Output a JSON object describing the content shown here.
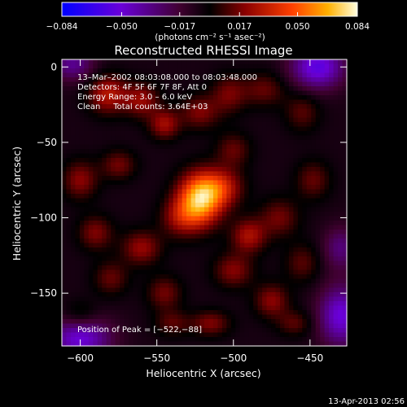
{
  "chart_data": {
    "type": "heatmap",
    "title": "Reconstructed RHESSI Image",
    "xlabel": "Heliocentric X (arcsec)",
    "ylabel": "Heliocentric Y (arcsec)",
    "xlim": [
      -612,
      -426
    ],
    "ylim": [
      -185,
      5
    ],
    "x_ticks": [
      -600,
      -550,
      -500,
      -450
    ],
    "x_tick_labels": [
      "−600",
      "−550",
      "−500",
      "−450"
    ],
    "y_ticks": [
      0,
      -50,
      -100,
      -150
    ],
    "y_tick_labels": [
      "0",
      "−50",
      "−100",
      "−150"
    ],
    "colorbar": {
      "min": -0.084,
      "max": 0.084,
      "ticks": [
        -0.084,
        -0.05,
        -0.017,
        0.017,
        0.05,
        0.084
      ],
      "tick_labels": [
        "−0.084",
        "−0.050",
        "−0.017",
        "0.017",
        "0.050",
        "0.084"
      ],
      "unit_label": "(photons cm⁻² s⁻¹ asec⁻²)"
    },
    "annotations": [
      "13–Mar–2002 08:03:08.000 to 08:03:48.000",
      "Detectors: 4F 5F 6F 7F 8F, Att 0",
      "Energy Range: 3.0 – 6.0 keV",
      "Clean     Total counts: 3.64E+03"
    ],
    "peak_label": "Position of Peak = [−522,−88]",
    "peak": {
      "x": -522,
      "y": -88,
      "value": 0.084
    },
    "grid": false,
    "blobs": [
      {
        "x": -522,
        "y": -88,
        "sx": 10,
        "sy": 12,
        "a": 0.075
      },
      {
        "x": -508,
        "y": -80,
        "sx": 10,
        "sy": 9,
        "a": 0.035
      },
      {
        "x": -535,
        "y": -100,
        "sx": 9,
        "sy": 9,
        "a": 0.025
      },
      {
        "x": -582,
        "y": -18,
        "sx": 9,
        "sy": 9,
        "a": 0.035
      },
      {
        "x": -560,
        "y": -22,
        "sx": 8,
        "sy": 8,
        "a": 0.028
      },
      {
        "x": -545,
        "y": -38,
        "sx": 7,
        "sy": 7,
        "a": 0.03
      },
      {
        "x": -522,
        "y": -30,
        "sx": 9,
        "sy": 8,
        "a": 0.024
      },
      {
        "x": -503,
        "y": -18,
        "sx": 8,
        "sy": 9,
        "a": 0.022
      },
      {
        "x": -480,
        "y": -15,
        "sx": 10,
        "sy": 8,
        "a": 0.02
      },
      {
        "x": -455,
        "y": -30,
        "sx": 8,
        "sy": 9,
        "a": 0.018
      },
      {
        "x": -448,
        "y": -75,
        "sx": 8,
        "sy": 9,
        "a": 0.02
      },
      {
        "x": -470,
        "y": -100,
        "sx": 9,
        "sy": 9,
        "a": 0.022
      },
      {
        "x": -490,
        "y": -112,
        "sx": 8,
        "sy": 8,
        "a": 0.032
      },
      {
        "x": -500,
        "y": -135,
        "sx": 9,
        "sy": 8,
        "a": 0.025
      },
      {
        "x": -475,
        "y": -155,
        "sx": 8,
        "sy": 8,
        "a": 0.026
      },
      {
        "x": -515,
        "y": -170,
        "sx": 9,
        "sy": 6,
        "a": 0.024
      },
      {
        "x": -545,
        "y": -150,
        "sx": 8,
        "sy": 8,
        "a": 0.022
      },
      {
        "x": -560,
        "y": -120,
        "sx": 9,
        "sy": 8,
        "a": 0.028
      },
      {
        "x": -590,
        "y": -110,
        "sx": 8,
        "sy": 8,
        "a": 0.024
      },
      {
        "x": -600,
        "y": -75,
        "sx": 8,
        "sy": 9,
        "a": 0.026
      },
      {
        "x": -575,
        "y": -65,
        "sx": 8,
        "sy": 7,
        "a": 0.022
      },
      {
        "x": -580,
        "y": -140,
        "sx": 8,
        "sy": 8,
        "a": 0.02
      },
      {
        "x": -455,
        "y": -130,
        "sx": 8,
        "sy": 9,
        "a": 0.018
      },
      {
        "x": -540,
        "y": -170,
        "sx": 8,
        "sy": 6,
        "a": 0.018
      },
      {
        "x": -600,
        "y": -165,
        "sx": 8,
        "sy": 7,
        "a": 0.016
      },
      {
        "x": -500,
        "y": -55,
        "sx": 8,
        "sy": 8,
        "a": 0.02
      },
      {
        "x": -460,
        "y": -170,
        "sx": 8,
        "sy": 6,
        "a": 0.018
      }
    ],
    "negatives": [
      {
        "x": -445,
        "y": 0,
        "sx": 12,
        "sy": 10,
        "a": -0.05
      },
      {
        "x": -600,
        "y": -180,
        "sx": 14,
        "sy": 10,
        "a": -0.045
      },
      {
        "x": -430,
        "y": -165,
        "sx": 10,
        "sy": 14,
        "a": -0.045
      },
      {
        "x": -605,
        "y": 2,
        "sx": 10,
        "sy": 8,
        "a": -0.03
      },
      {
        "x": -430,
        "y": -120,
        "sx": 8,
        "sy": 10,
        "a": -0.025
      }
    ]
  },
  "footer": {
    "date": "13-Apr-2013 02:56"
  }
}
